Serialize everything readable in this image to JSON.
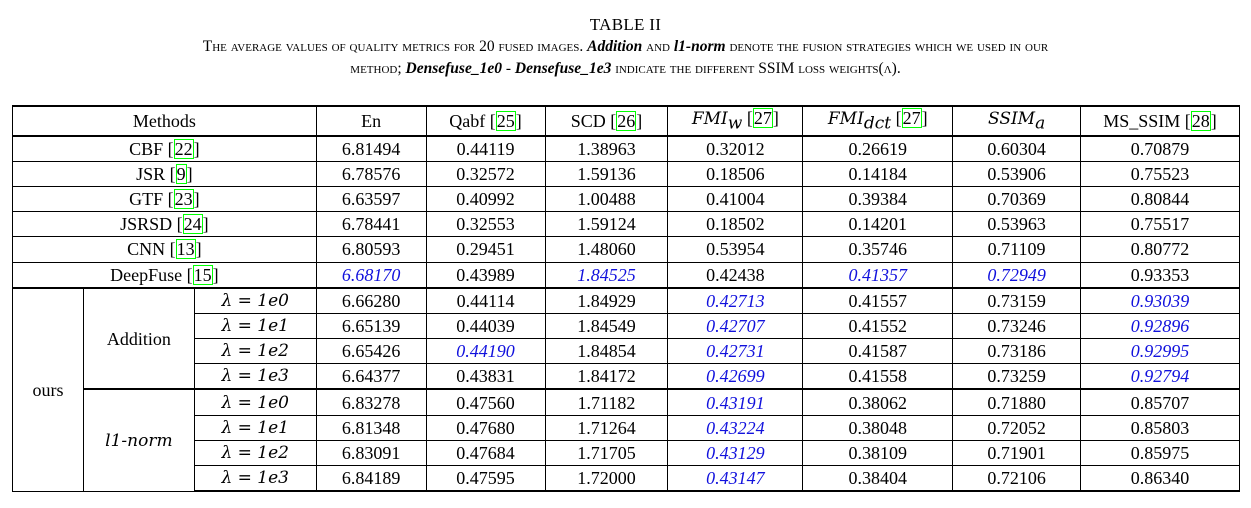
{
  "caption": {
    "table_number": "TABLE II",
    "line1_a": "The average values of quality metrics for 20 fused images. ",
    "addition": "Addition",
    "and": " and ",
    "l1_norm": "l1-norm",
    "line1_b": " denote the fusion strategies which we used in our",
    "line2_a": "method; ",
    "densefuse_1e0": "Densefuse_1e0",
    "dash": " - ",
    "densefuse_1e3": "Densefuse_1e3",
    "line2_b": " indicate the different SSIM loss weights(λ)."
  },
  "headers": {
    "methods": "Methods",
    "en": "En",
    "qabf": "Qabf",
    "qabf_ref": "25",
    "scd": "SCD",
    "scd_ref": "26",
    "fmiw": "FMI",
    "fmiw_sub": "w",
    "fmiw_ref": "27",
    "fmidct": "FMI",
    "fmidct_sub": "dct",
    "fmidct_ref": "27",
    "ssima": "SSIM",
    "ssima_sub": "a",
    "msssim": "MS_SSIM",
    "msssim_ref": "28"
  },
  "groups": {
    "ours": "ours",
    "addition": "Addition",
    "l1_norm": "l1-norm"
  },
  "baselines": [
    {
      "name": "CBF",
      "ref": "22",
      "values": [
        "6.81494",
        "0.44119",
        "1.38963",
        "0.32012",
        "0.26619",
        "0.60304",
        "0.70879"
      ]
    },
    {
      "name": "JSR",
      "ref": "9",
      "values": [
        "6.78576",
        "0.32572",
        "1.59136",
        "0.18506",
        "0.14184",
        "0.53906",
        "0.75523"
      ]
    },
    {
      "name": "GTF",
      "ref": "23",
      "values": [
        "6.63597",
        "0.40992",
        "1.00488",
        "0.41004",
        "0.39384",
        "0.70369",
        "0.80844"
      ]
    },
    {
      "name": "JSRSD",
      "ref": "24",
      "values": [
        "6.78441",
        "0.32553",
        "1.59124",
        "0.18502",
        "0.14201",
        "0.53963",
        "0.75517"
      ]
    },
    {
      "name": "CNN",
      "ref": "13",
      "values": [
        "6.80593",
        "0.29451",
        "1.48060",
        "0.53954",
        "0.35746",
        "0.71109",
        "0.80772"
      ]
    },
    {
      "name": "DeepFuse",
      "ref": "15",
      "values": [
        "6.68170",
        "0.43989",
        "1.84525",
        "0.42438",
        "0.41357",
        "0.72949",
        "0.93353"
      ]
    }
  ],
  "lambda_labels": [
    "λ = 1e0",
    "λ = 1e1",
    "λ = 1e2",
    "λ = 1e3"
  ],
  "addition_rows": [
    [
      "6.66280",
      "0.44114",
      "1.84929",
      "0.42713",
      "0.41557",
      "0.73159",
      "0.93039"
    ],
    [
      "6.65139",
      "0.44039",
      "1.84549",
      "0.42707",
      "0.41552",
      "0.73246",
      "0.92896"
    ],
    [
      "6.65426",
      "0.44190",
      "1.84854",
      "0.42731",
      "0.41587",
      "0.73186",
      "0.92995"
    ],
    [
      "6.64377",
      "0.43831",
      "1.84172",
      "0.42699",
      "0.41558",
      "0.73259",
      "0.92794"
    ]
  ],
  "l1_rows": [
    [
      "6.83278",
      "0.47560",
      "1.71182",
      "0.43191",
      "0.38062",
      "0.71880",
      "0.85707"
    ],
    [
      "6.81348",
      "0.47680",
      "1.71264",
      "0.43224",
      "0.38048",
      "0.72052",
      "0.85803"
    ],
    [
      "6.83091",
      "0.47684",
      "1.71705",
      "0.43129",
      "0.38109",
      "0.71901",
      "0.85975"
    ],
    [
      "6.84189",
      "0.47595",
      "1.72000",
      "0.43147",
      "0.38404",
      "0.72106",
      "0.86340"
    ]
  ]
}
